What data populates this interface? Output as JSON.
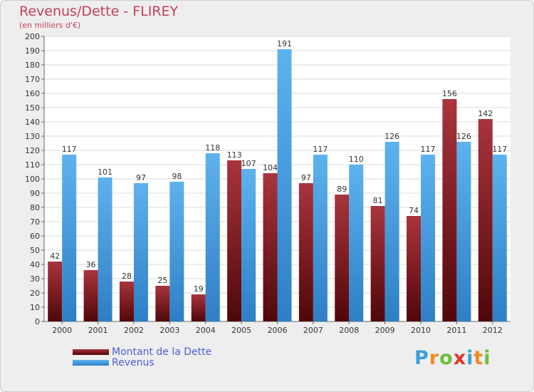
{
  "chart_data": {
    "type": "bar",
    "title": "Revenus/Dette - FLIREY",
    "subtitle": "(en milliers d'€)",
    "categories": [
      "2000",
      "2001",
      "2002",
      "2003",
      "2004",
      "2005",
      "2006",
      "2007",
      "2008",
      "2009",
      "2010",
      "2011",
      "2012"
    ],
    "series": [
      {
        "name": "Montant de la Dette",
        "color": "#7a1e25",
        "values": [
          42,
          36,
          28,
          25,
          19,
          113,
          104,
          97,
          89,
          81,
          74,
          156,
          142
        ]
      },
      {
        "name": "Revenus",
        "color": "#3f97dc",
        "values": [
          117,
          101,
          97,
          98,
          118,
          107,
          191,
          117,
          110,
          126,
          117,
          126,
          117
        ]
      }
    ],
    "ylim": [
      0,
      200
    ],
    "ytick_step": 10,
    "grid": true,
    "legend_position": "bottom-left"
  },
  "brand": {
    "letters": [
      "P",
      "r",
      "o",
      "x",
      "i",
      "t",
      "i"
    ],
    "colors": [
      "#3da0d8",
      "#f08a1c",
      "#6cbf3c",
      "#e0352b",
      "#3da0d8",
      "#f08a1c",
      "#6cbf3c"
    ]
  }
}
